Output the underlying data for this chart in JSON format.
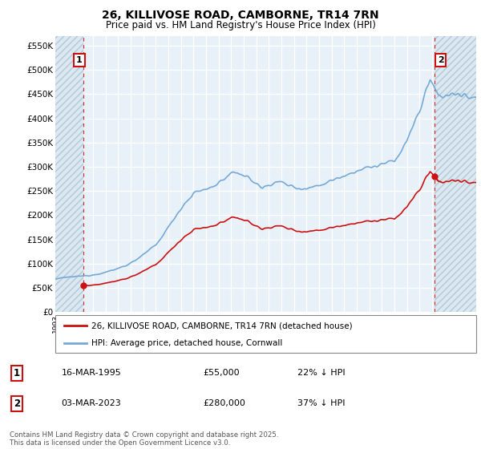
{
  "title": "26, KILLIVOSE ROAD, CAMBORNE, TR14 7RN",
  "subtitle": "Price paid vs. HM Land Registry's House Price Index (HPI)",
  "ylabel_ticks": [
    "£0",
    "£50K",
    "£100K",
    "£150K",
    "£200K",
    "£250K",
    "£300K",
    "£350K",
    "£400K",
    "£450K",
    "£500K",
    "£550K"
  ],
  "ytick_values": [
    0,
    50000,
    100000,
    150000,
    200000,
    250000,
    300000,
    350000,
    400000,
    450000,
    500000,
    550000
  ],
  "xlim": [
    1993.0,
    2026.5
  ],
  "ylim": [
    0,
    570000
  ],
  "sale1_date": 1995.21,
  "sale1_price": 55000,
  "sale2_date": 2023.17,
  "sale2_price": 280000,
  "hpi_color": "#74a9d8",
  "price_color": "#cc1111",
  "hatch_color": "#dce8f0",
  "annotation_box_color": "#cc1111",
  "background_color": "#ffffff",
  "plot_bg_color": "#e8f0f8",
  "legend_label1": "26, KILLIVOSE ROAD, CAMBORNE, TR14 7RN (detached house)",
  "legend_label2": "HPI: Average price, detached house, Cornwall",
  "table_row1": [
    "1",
    "16-MAR-1995",
    "£55,000",
    "22% ↓ HPI"
  ],
  "table_row2": [
    "2",
    "03-MAR-2023",
    "£280,000",
    "37% ↓ HPI"
  ],
  "footer": "Contains HM Land Registry data © Crown copyright and database right 2025.\nThis data is licensed under the Open Government Licence v3.0.",
  "grid_color": "#ffffff",
  "dashed_line_color": "#cc1111"
}
